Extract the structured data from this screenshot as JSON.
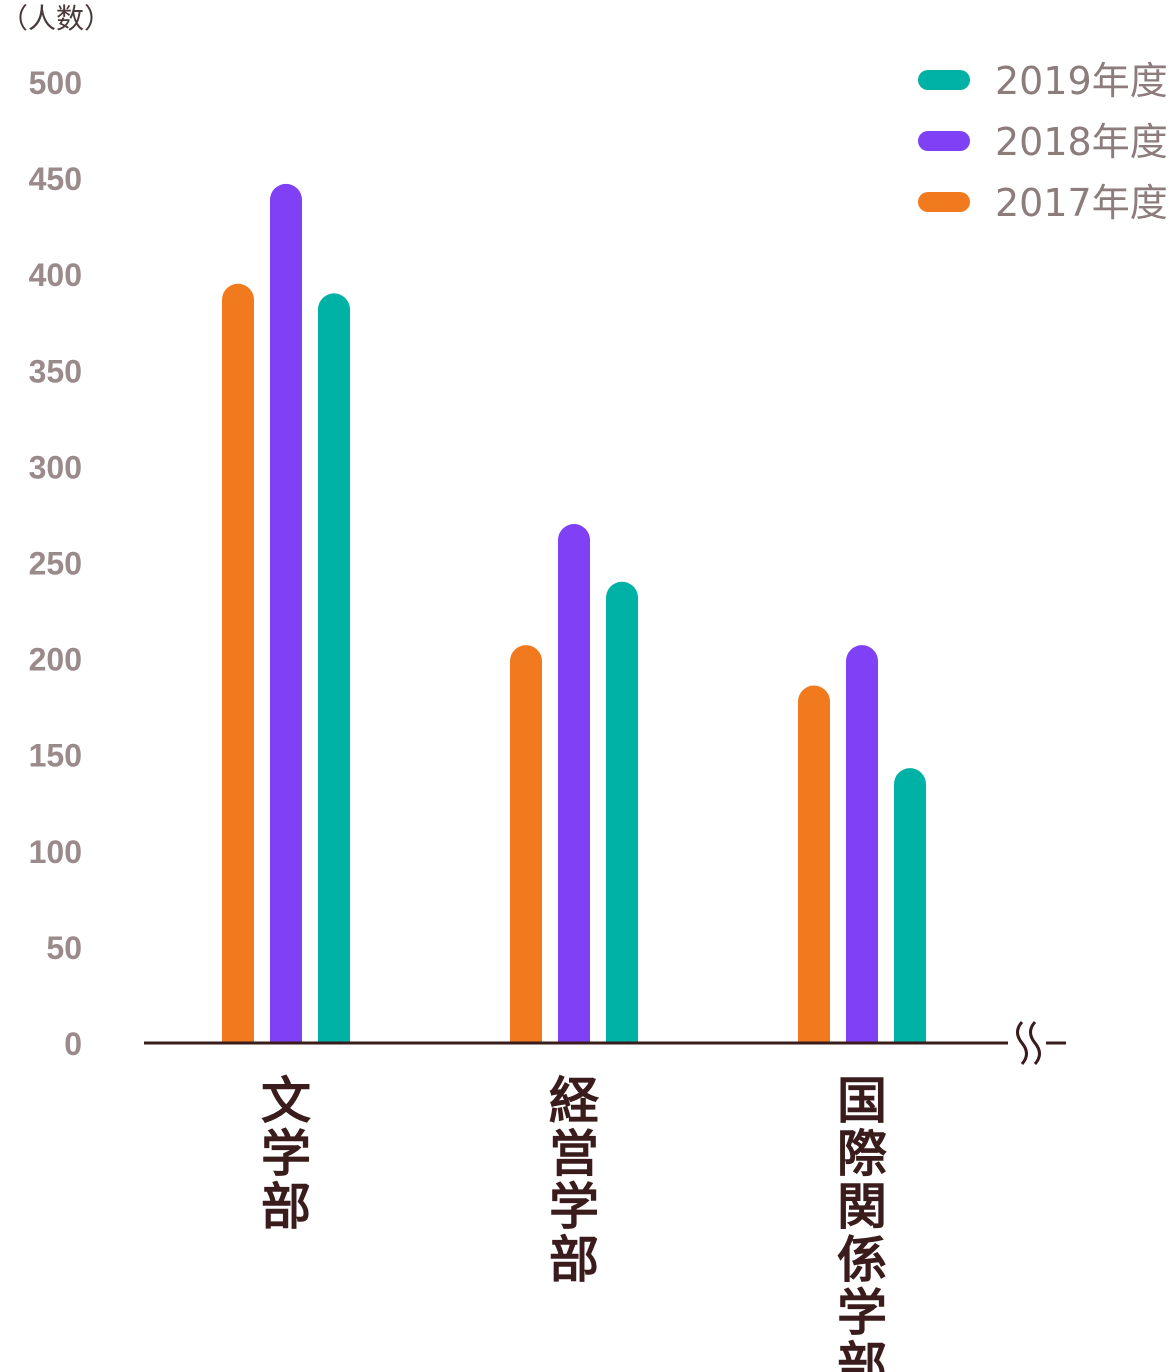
{
  "chart_data": {
    "type": "bar",
    "unit_label": "（人数）",
    "categories": [
      "文学部",
      "経営学部",
      "国際関係学部"
    ],
    "series": [
      {
        "name": "2017年度",
        "color": "#F27A1E",
        "values": [
          395,
          207,
          186
        ]
      },
      {
        "name": "2018年度",
        "color": "#8040F5",
        "values": [
          447,
          270,
          207
        ]
      },
      {
        "name": "2019年度",
        "color": "#00B2A6",
        "values": [
          390,
          240,
          143
        ]
      }
    ],
    "legend_order": [
      "2019年度",
      "2018年度",
      "2017年度"
    ],
    "legend_position": "top-right",
    "ylim": [
      0,
      500
    ],
    "yticks": [
      0,
      50,
      100,
      150,
      200,
      250,
      300,
      350,
      400,
      450,
      500
    ],
    "grid": false,
    "axis_break": true,
    "axis_color": "#3a1c1c",
    "tick_color": "#9a8a8a"
  }
}
